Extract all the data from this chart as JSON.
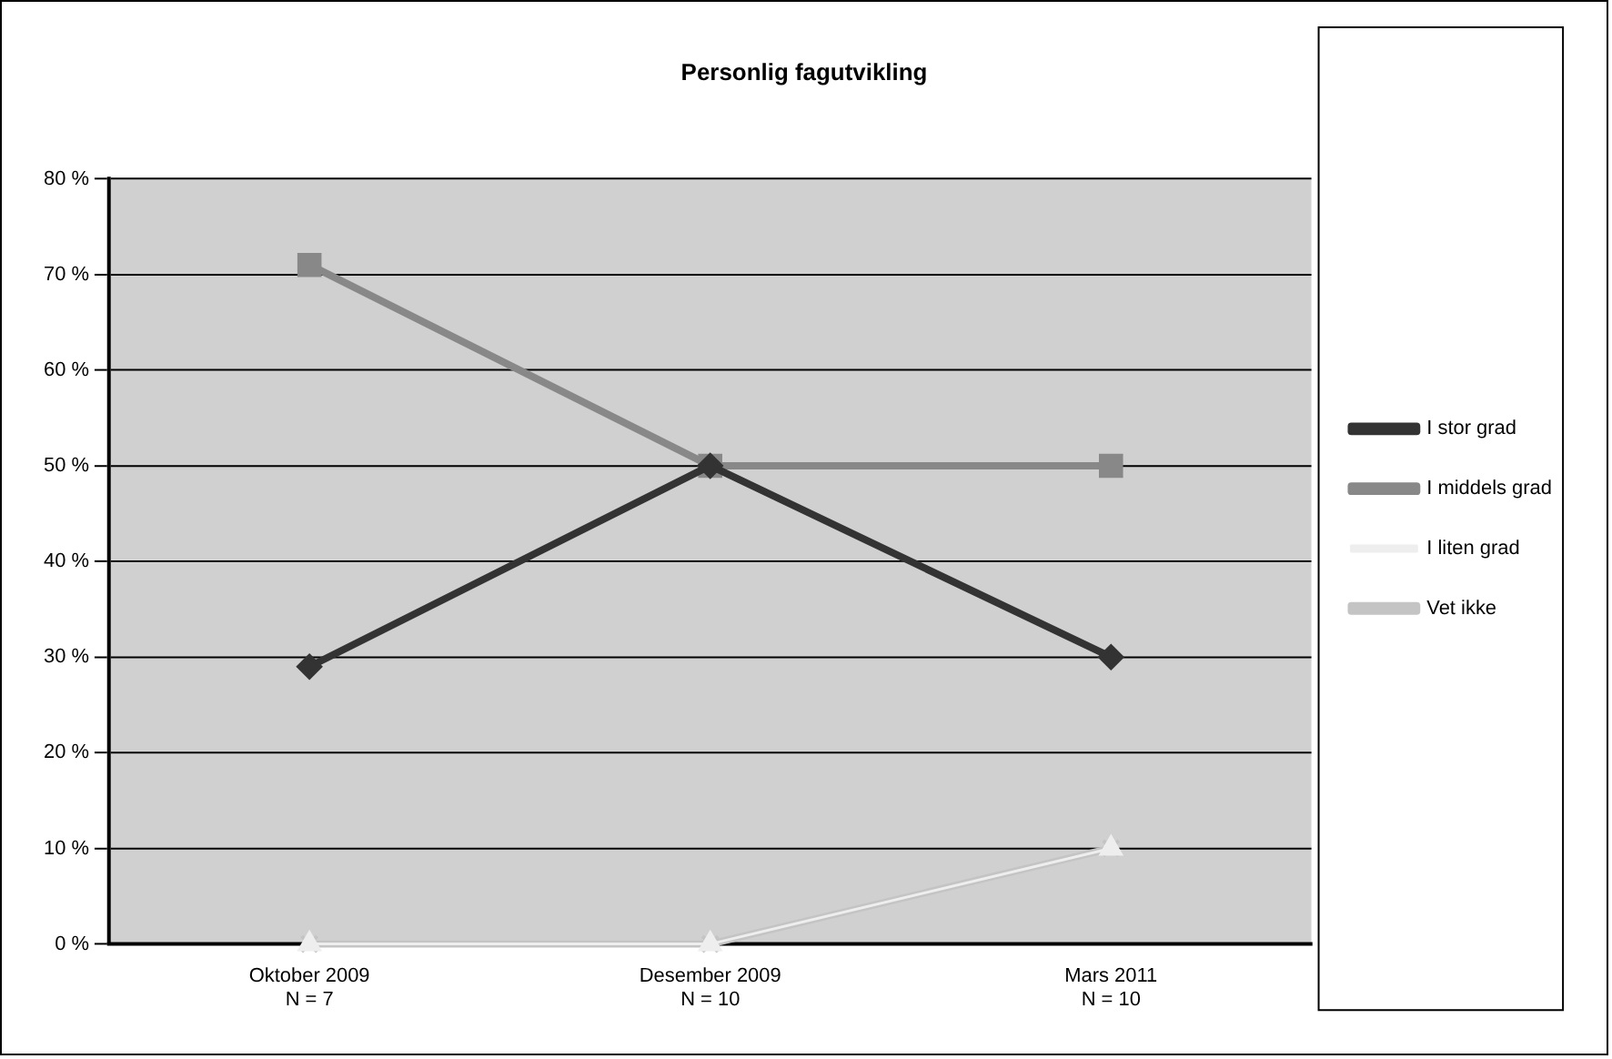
{
  "chart_data": {
    "type": "line",
    "title": "Personlig fagutvikling",
    "categories": [
      "Oktober 2009\nN = 7",
      "Desember 2009\nN = 10",
      "Mars 2011\nN = 10"
    ],
    "series": [
      {
        "name": "I stor grad",
        "color": "#333333",
        "values": [
          29,
          50,
          30
        ],
        "marker": "diamond"
      },
      {
        "name": "I middels grad",
        "color": "#888888",
        "values": [
          71,
          50,
          50
        ],
        "marker": "square"
      },
      {
        "name": "I liten grad",
        "color": "#eeeeee",
        "values": [
          0,
          0,
          10
        ],
        "marker": "triangle"
      },
      {
        "name": "Vet ikke",
        "color": "#c4c4c4",
        "values": [
          0,
          0,
          10
        ],
        "marker": "cross"
      }
    ],
    "ylim": [
      0,
      80
    ],
    "yticks": [
      {
        "value": 0,
        "label": "0 %"
      },
      {
        "value": 10,
        "label": "10 %"
      },
      {
        "value": 20,
        "label": "20 %"
      },
      {
        "value": 30,
        "label": "30 %"
      },
      {
        "value": 40,
        "label": "40 %"
      },
      {
        "value": 50,
        "label": "50 %"
      },
      {
        "value": 60,
        "label": "60 %"
      },
      {
        "value": 70,
        "label": "70 %"
      },
      {
        "value": 80,
        "label": "80 %"
      }
    ],
    "grid": "y",
    "legend": "right",
    "line_style": "solid"
  }
}
